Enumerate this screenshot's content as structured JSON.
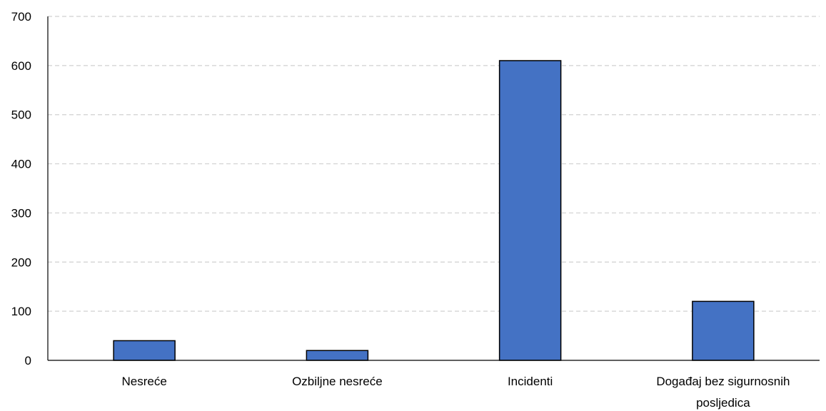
{
  "chart_data": {
    "type": "bar",
    "title": "",
    "xlabel": "",
    "ylabel": "",
    "categories": [
      [
        "Nesreće"
      ],
      [
        "Ozbiljne nesreće"
      ],
      [
        "Incidenti"
      ],
      [
        "Događaj bez sigurnosnih",
        "posljedica"
      ]
    ],
    "values": [
      40,
      20,
      610,
      120
    ],
    "ylim": [
      0,
      700
    ],
    "yticks": [
      0,
      100,
      200,
      300,
      400,
      500,
      600,
      700
    ],
    "grid": true,
    "legend": "none",
    "colors": {
      "bar_fill": "#4472C4",
      "bar_stroke": "#000000",
      "grid": "#D0D0D0",
      "axis": "#000000"
    }
  }
}
